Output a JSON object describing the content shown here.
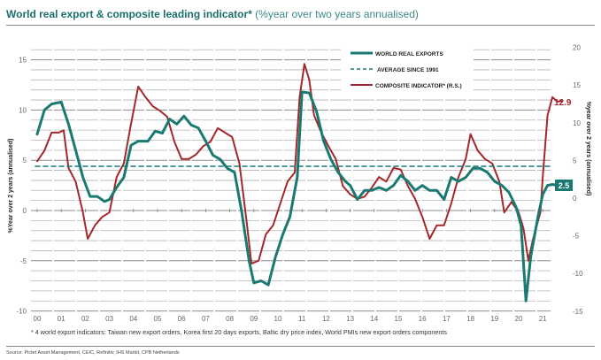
{
  "title": {
    "main": "World real export & composite leading indicator*",
    "sub": " (%year over two years annualised)"
  },
  "footnote": "* 4 world export indicators: Taiwan new export orders, Korea first 20 days exports, Baltic dry price index, World PMIs new export orders components",
  "source": "Source: Pictet Asset Management, CEIC, Refinitiv, IHS Markit, CPB Netherlands",
  "colors": {
    "exports": "#1a7a72",
    "composite": "#a3282b",
    "grid": "#b5b5b5"
  },
  "chart_data": {
    "type": "line",
    "title": "World real export & composite leading indicator* (%year over two years annualised)",
    "xlabel": "",
    "ylabel_left": "%Year over 2 years (annualised)",
    "ylabel_right": "%year over 2 years (annualised)",
    "x_tick_labels": [
      "00",
      "01",
      "02",
      "03",
      "04",
      "05",
      "06",
      "07",
      "08",
      "09",
      "10",
      "11",
      "12",
      "13",
      "14",
      "15",
      "16",
      "17",
      "18",
      "19",
      "20",
      "21"
    ],
    "xlim": [
      2000,
      2022
    ],
    "ylim_left": [
      -10,
      16.3
    ],
    "ylim_right": [
      -15,
      20
    ],
    "y_ticks_left": [
      15,
      10,
      5,
      0,
      -5,
      -10
    ],
    "y_ticks_right": [
      20,
      15,
      10,
      5,
      0,
      -5,
      -10,
      -15
    ],
    "grid": true,
    "legend_position": "top-right",
    "legend": [
      "WORLD REAL EXPORTS",
      "AVERAGE SINCE 1991",
      "COMPOSITE INDICATOR* (R.S.)"
    ],
    "series": [
      {
        "name": "WORLD REAL EXPORTS",
        "axis": "left",
        "style": "solid",
        "end_label": "2.5",
        "x": [
          2000.0,
          2000.3,
          2000.6,
          2001.0,
          2001.3,
          2001.6,
          2001.9,
          2002.2,
          2002.5,
          2002.8,
          2003.0,
          2003.3,
          2003.6,
          2003.9,
          2004.2,
          2004.6,
          2004.9,
          2005.2,
          2005.5,
          2005.8,
          2006.1,
          2006.4,
          2006.7,
          2007.0,
          2007.3,
          2007.6,
          2007.9,
          2008.2,
          2008.5,
          2008.8,
          2009.0,
          2009.3,
          2009.6,
          2009.9,
          2010.2,
          2010.5,
          2010.8,
          2011.0,
          2011.3,
          2011.6,
          2011.9,
          2012.2,
          2012.5,
          2012.8,
          2013.0,
          2013.3,
          2013.6,
          2013.9,
          2014.2,
          2014.5,
          2014.8,
          2015.1,
          2015.4,
          2015.7,
          2016.0,
          2016.3,
          2016.6,
          2016.9,
          2017.2,
          2017.5,
          2017.8,
          2018.1,
          2018.4,
          2018.7,
          2019.0,
          2019.3,
          2019.6,
          2019.9,
          2020.1,
          2020.3,
          2020.5,
          2020.8,
          2021.0,
          2021.2,
          2021.4,
          2021.6
        ],
        "values": [
          7.6,
          10.0,
          10.6,
          10.8,
          8.6,
          6.0,
          3.3,
          1.4,
          1.4,
          0.9,
          1.1,
          2.3,
          3.3,
          6.5,
          6.9,
          6.9,
          7.9,
          7.7,
          9.1,
          8.6,
          9.4,
          8.5,
          8.2,
          6.9,
          5.5,
          5.1,
          4.2,
          3.8,
          -0.2,
          -5.0,
          -7.2,
          -7.0,
          -7.4,
          -4.6,
          -2.4,
          -0.6,
          3.3,
          11.8,
          11.7,
          9.9,
          6.9,
          5.1,
          3.8,
          2.9,
          2.5,
          1.1,
          2.0,
          2.0,
          2.3,
          2.0,
          2.5,
          3.5,
          2.9,
          2.0,
          2.5,
          2.0,
          2.0,
          1.1,
          3.3,
          2.9,
          3.3,
          4.2,
          4.2,
          3.8,
          2.9,
          2.5,
          1.8,
          0.3,
          -1.5,
          -9.0,
          -4.6,
          -0.6,
          1.6,
          2.5,
          2.6,
          2.5
        ]
      },
      {
        "name": "AVERAGE SINCE 1991",
        "axis": "left",
        "style": "dashed",
        "x": [
          2000.0,
          2022.0
        ],
        "values": [
          4.4,
          4.4
        ]
      },
      {
        "name": "COMPOSITE INDICATOR* (R.S.)",
        "axis": "right",
        "style": "solid",
        "end_label": "12.9",
        "x": [
          2000.0,
          2000.3,
          2000.6,
          2000.9,
          2001.1,
          2001.3,
          2001.6,
          2001.9,
          2002.1,
          2002.4,
          2002.7,
          2003.0,
          2003.3,
          2003.6,
          2003.9,
          2004.2,
          2004.5,
          2004.8,
          2005.1,
          2005.4,
          2005.7,
          2006.0,
          2006.3,
          2006.6,
          2006.9,
          2007.2,
          2007.5,
          2007.8,
          2008.1,
          2008.4,
          2008.7,
          2008.9,
          2009.2,
          2009.5,
          2009.8,
          2010.1,
          2010.4,
          2010.7,
          2010.9,
          2011.1,
          2011.3,
          2011.5,
          2011.8,
          2012.1,
          2012.4,
          2012.7,
          2013.0,
          2013.3,
          2013.6,
          2013.9,
          2014.2,
          2014.5,
          2014.8,
          2015.1,
          2015.4,
          2015.7,
          2016.0,
          2016.3,
          2016.6,
          2016.9,
          2017.2,
          2017.5,
          2017.8,
          2018.0,
          2018.3,
          2018.6,
          2018.9,
          2019.2,
          2019.4,
          2019.7,
          2020.0,
          2020.2,
          2020.4,
          2020.6,
          2020.9,
          2021.0,
          2021.2,
          2021.4,
          2021.6,
          2021.8
        ],
        "values": [
          4.9,
          6.3,
          8.7,
          8.7,
          9.0,
          4.0,
          2.2,
          -1.9,
          -5.4,
          -3.6,
          -2.5,
          -1.9,
          2.8,
          4.6,
          9.9,
          14.8,
          13.4,
          12.2,
          11.6,
          10.8,
          7.5,
          5.2,
          5.2,
          5.8,
          6.9,
          7.5,
          9.3,
          8.7,
          8.1,
          4.6,
          -3.1,
          -8.7,
          -8.3,
          -4.8,
          -3.6,
          -0.7,
          2.2,
          3.4,
          13.4,
          17.8,
          15.7,
          11.0,
          8.7,
          6.9,
          5.2,
          1.6,
          0.5,
          -0.1,
          0.2,
          1.4,
          2.8,
          2.2,
          4.0,
          3.8,
          1.6,
          -0.1,
          -2.5,
          -5.4,
          -3.6,
          -3.6,
          -0.7,
          2.8,
          5.2,
          8.5,
          6.3,
          5.2,
          4.6,
          2.2,
          -1.9,
          -0.5,
          -1.9,
          -4.0,
          -8.3,
          -5.4,
          -1.9,
          2.8,
          11.0,
          13.4,
          12.8,
          12.9
        ]
      }
    ]
  }
}
